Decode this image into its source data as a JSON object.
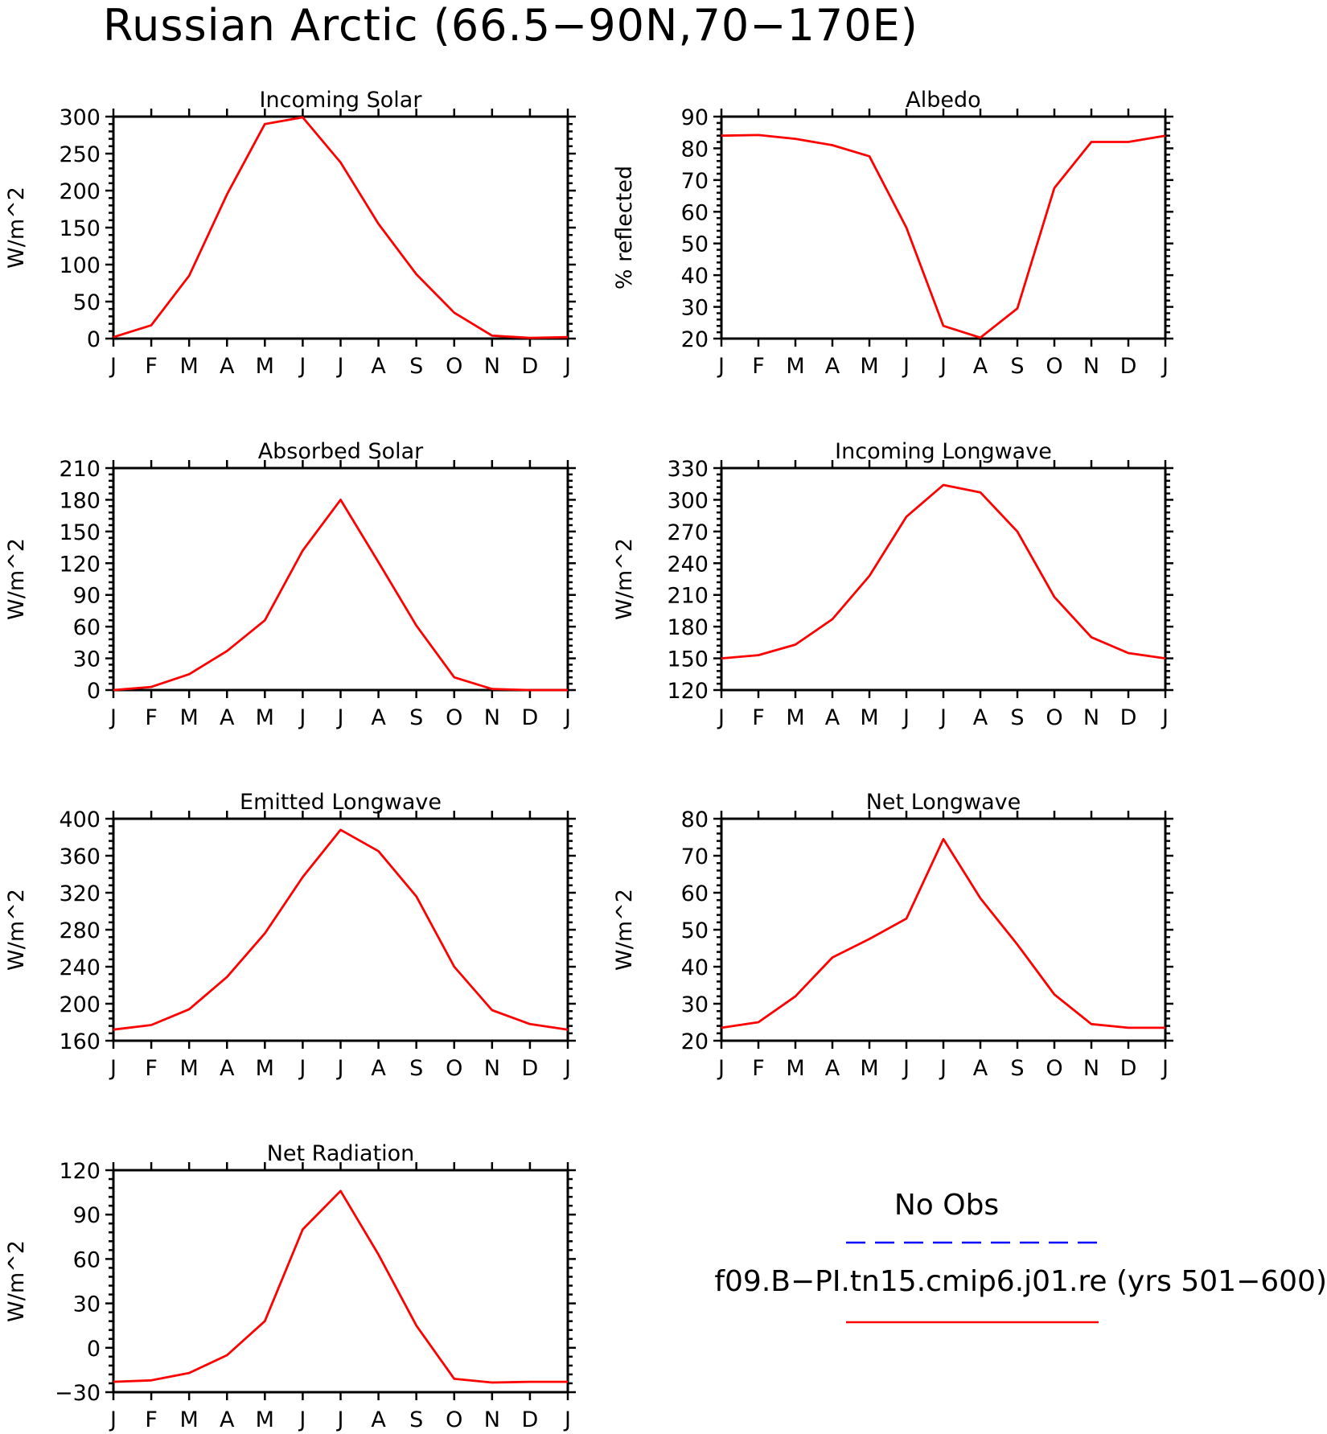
{
  "figure": {
    "title": "Russian Arctic (66.5−90N,70−170E)",
    "colors": {
      "model": "#ff0000",
      "obs": "#0000ff",
      "axes": "#000000"
    }
  },
  "legend": {
    "obs_label": "No Obs",
    "model_label": "f09.B−PI.tn15.cmip6.j01.re (yrs 501−600)"
  },
  "chart_data": [
    {
      "type": "line",
      "title": "Incoming Solar",
      "ylabel": "W/m^2",
      "categories": [
        "J",
        "F",
        "M",
        "A",
        "M",
        "J",
        "J",
        "A",
        "S",
        "O",
        "N",
        "D",
        "J"
      ],
      "ylim": [
        0,
        300
      ],
      "yticks": [
        0,
        50,
        100,
        150,
        200,
        250,
        300
      ],
      "ytick_labels": [
        "0",
        "50",
        "100",
        "150",
        "200",
        "250",
        "300"
      ],
      "series": [
        {
          "values": [
            2,
            18,
            85,
            195,
            290,
            299,
            238,
            155,
            87,
            35,
            4,
            1,
            2
          ]
        }
      ]
    },
    {
      "type": "line",
      "title": "Albedo",
      "ylabel": "% reflected",
      "categories": [
        "J",
        "F",
        "M",
        "A",
        "M",
        "J",
        "J",
        "A",
        "S",
        "O",
        "N",
        "D",
        "J"
      ],
      "ylim": [
        20,
        90
      ],
      "yticks": [
        20,
        30,
        40,
        50,
        60,
        70,
        80,
        90
      ],
      "ytick_labels": [
        "20",
        "30",
        "40",
        "50",
        "60",
        "70",
        "80",
        "90"
      ],
      "series": [
        {
          "values": [
            84,
            84.2,
            83,
            81,
            77.5,
            55,
            24,
            20.3,
            29.5,
            67.5,
            82,
            82,
            84
          ]
        }
      ]
    },
    {
      "type": "line",
      "title": "Absorbed Solar",
      "ylabel": "W/m^2",
      "categories": [
        "J",
        "F",
        "M",
        "A",
        "M",
        "J",
        "J",
        "A",
        "S",
        "O",
        "N",
        "D",
        "J"
      ],
      "ylim": [
        0,
        210
      ],
      "yticks": [
        0,
        30,
        60,
        90,
        120,
        150,
        180,
        210
      ],
      "ytick_labels": [
        "0",
        "30",
        "60",
        "90",
        "120",
        "150",
        "180",
        "210"
      ],
      "series": [
        {
          "values": [
            0,
            3,
            15,
            37,
            66,
            132,
            180,
            121,
            61,
            12,
            1,
            0,
            0
          ]
        }
      ]
    },
    {
      "type": "line",
      "title": "Incoming Longwave",
      "ylabel": "W/m^2",
      "categories": [
        "J",
        "F",
        "M",
        "A",
        "M",
        "J",
        "J",
        "A",
        "S",
        "O",
        "N",
        "D",
        "J"
      ],
      "ylim": [
        120,
        330
      ],
      "yticks": [
        120,
        150,
        180,
        210,
        240,
        270,
        300,
        330
      ],
      "ytick_labels": [
        "120",
        "150",
        "180",
        "210",
        "240",
        "270",
        "300",
        "330"
      ],
      "series": [
        {
          "values": [
            150,
            153,
            163,
            187,
            228,
            284,
            314,
            307,
            270,
            208,
            170,
            155,
            150
          ]
        }
      ]
    },
    {
      "type": "line",
      "title": "Emitted Longwave",
      "ylabel": "W/m^2",
      "categories": [
        "J",
        "F",
        "M",
        "A",
        "M",
        "J",
        "J",
        "A",
        "S",
        "O",
        "N",
        "D",
        "J"
      ],
      "ylim": [
        160,
        400
      ],
      "yticks": [
        160,
        200,
        240,
        280,
        320,
        360,
        400
      ],
      "ytick_labels": [
        "160",
        "200",
        "240",
        "280",
        "320",
        "360",
        "400"
      ],
      "series": [
        {
          "values": [
            172,
            177,
            194,
            229,
            276,
            337,
            388,
            365,
            316,
            240,
            193,
            178,
            172
          ]
        }
      ]
    },
    {
      "type": "line",
      "title": "Net Longwave",
      "ylabel": "W/m^2",
      "categories": [
        "J",
        "F",
        "M",
        "A",
        "M",
        "J",
        "J",
        "A",
        "S",
        "O",
        "N",
        "D",
        "J"
      ],
      "ylim": [
        20,
        80
      ],
      "yticks": [
        20,
        30,
        40,
        50,
        60,
        70,
        80
      ],
      "ytick_labels": [
        "20",
        "30",
        "40",
        "50",
        "60",
        "70",
        "80"
      ],
      "series": [
        {
          "values": [
            23.5,
            25,
            32,
            42.5,
            47.5,
            53,
            74.5,
            58.5,
            46,
            32.5,
            24.5,
            23.5,
            23.5
          ]
        }
      ]
    },
    {
      "type": "line",
      "title": "Net Radiation",
      "ylabel": "W/m^2",
      "categories": [
        "J",
        "F",
        "M",
        "A",
        "M",
        "J",
        "J",
        "A",
        "S",
        "O",
        "N",
        "D",
        "J"
      ],
      "ylim": [
        -30,
        120
      ],
      "yticks": [
        -30,
        0,
        30,
        60,
        90,
        120
      ],
      "ytick_labels": [
        "−30",
        "0",
        "30",
        "60",
        "90",
        "120"
      ],
      "series": [
        {
          "values": [
            -23,
            -22,
            -17,
            -5,
            18,
            80,
            106,
            63,
            15,
            -21,
            -23.5,
            -23,
            -23
          ]
        }
      ]
    }
  ]
}
